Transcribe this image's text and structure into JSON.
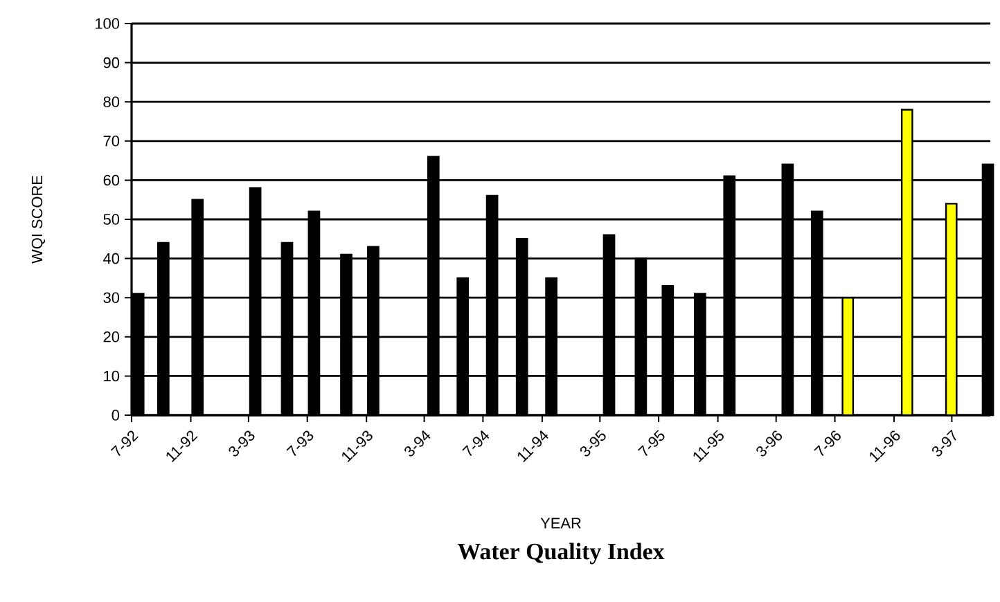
{
  "chart_data": {
    "type": "bar",
    "title": "Water Quality Index",
    "xlabel": "YEAR",
    "ylabel": "WQI SCORE",
    "x": [
      "1992-07-15",
      "1992-09-05",
      "1992-11-15",
      "1993-03-15",
      "1993-05-20",
      "1993-07-15",
      "1993-09-20",
      "1993-11-15",
      "1994-03-20",
      "1994-05-20",
      "1994-07-20",
      "1994-09-20",
      "1994-11-20",
      "1995-03-20",
      "1995-05-25",
      "1995-07-20",
      "1995-09-25",
      "1995-11-25",
      "1996-03-25",
      "1996-05-25",
      "1996-07-28",
      "1996-11-28",
      "1997-02-28",
      "1997-05-15"
    ],
    "values": [
      31,
      44,
      55,
      58,
      44,
      52,
      41,
      43,
      66,
      35,
      56,
      45,
      35,
      46,
      40,
      33,
      31,
      61,
      64,
      52,
      30,
      78,
      54,
      64
    ],
    "colors": [
      "#000000",
      "#000000",
      "#000000",
      "#000000",
      "#000000",
      "#000000",
      "#000000",
      "#000000",
      "#000000",
      "#000000",
      "#000000",
      "#000000",
      "#000000",
      "#000000",
      "#000000",
      "#000000",
      "#000000",
      "#000000",
      "#000000",
      "#000000",
      "#ffff00",
      "#ffff00",
      "#ffff00",
      "#000000"
    ],
    "xlim": [
      "1992-07-01",
      "1997-05-20"
    ],
    "xticks": [
      {
        "value": "1992-07",
        "label": "7-92"
      },
      {
        "value": "1992-11",
        "label": "11-92"
      },
      {
        "value": "1993-03",
        "label": "3-93"
      },
      {
        "value": "1993-07",
        "label": "7-93"
      },
      {
        "value": "1993-11",
        "label": "11-93"
      },
      {
        "value": "1994-03",
        "label": "3-94"
      },
      {
        "value": "1994-07",
        "label": "7-94"
      },
      {
        "value": "1994-11",
        "label": "11-94"
      },
      {
        "value": "1995-03",
        "label": "3-95"
      },
      {
        "value": "1995-07",
        "label": "7-95"
      },
      {
        "value": "1995-11",
        "label": "11-95"
      },
      {
        "value": "1996-03",
        "label": "3-96"
      },
      {
        "value": "1996-07",
        "label": "7-96"
      },
      {
        "value": "1996-11",
        "label": "11-96"
      },
      {
        "value": "1997-03",
        "label": "3-97"
      }
    ],
    "ylim": [
      0,
      100
    ],
    "yticks": [
      0,
      10,
      20,
      30,
      40,
      50,
      60,
      70,
      80,
      90,
      100
    ],
    "grid": "y"
  }
}
